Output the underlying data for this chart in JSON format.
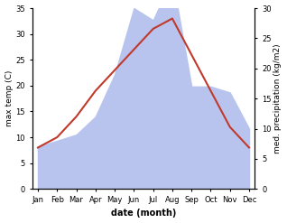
{
  "months": [
    "Jan",
    "Feb",
    "Mar",
    "Apr",
    "May",
    "Jun",
    "Jul",
    "Aug",
    "Sep",
    "Oct",
    "Nov",
    "Dec"
  ],
  "temp": [
    8,
    10,
    14,
    19,
    23,
    27,
    31,
    33,
    26,
    19,
    12,
    8
  ],
  "precip": [
    7,
    8,
    9,
    12,
    19,
    30,
    28,
    35,
    17,
    17,
    16,
    10
  ],
  "temp_color": "#c0392b",
  "precip_fill_color": "#b8c4ee",
  "left_ylim": [
    0,
    35
  ],
  "right_ylim": [
    0,
    30
  ],
  "left_yticks": [
    0,
    5,
    10,
    15,
    20,
    25,
    30,
    35
  ],
  "right_yticks": [
    0,
    5,
    10,
    15,
    20,
    25,
    30
  ],
  "ylabel_left": "max temp (C)",
  "ylabel_right": "med. precipitation (kg/m2)",
  "xlabel": "date (month)",
  "precip_scale": 1.1667
}
